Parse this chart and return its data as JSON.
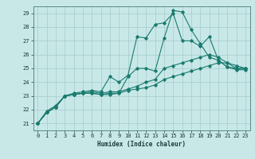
{
  "xlabel": "Humidex (Indice chaleur)",
  "ylabel": "",
  "xlim": [
    -0.5,
    23.5
  ],
  "ylim": [
    20.5,
    29.5
  ],
  "yticks": [
    21,
    22,
    23,
    24,
    25,
    26,
    27,
    28,
    29
  ],
  "xticks": [
    0,
    1,
    2,
    3,
    4,
    5,
    6,
    7,
    8,
    9,
    10,
    11,
    12,
    13,
    14,
    15,
    16,
    17,
    18,
    19,
    20,
    21,
    22,
    23
  ],
  "bg_color": "#c8e8e8",
  "grid_color": "#aad0d0",
  "line_color": "#1a7a6e",
  "lines": [
    [
      21.0,
      21.8,
      22.2,
      23.0,
      23.1,
      23.2,
      23.2,
      23.1,
      23.2,
      23.2,
      24.4,
      25.0,
      25.0,
      24.8,
      27.2,
      29.2,
      29.1,
      27.8,
      26.8,
      25.8,
      25.6,
      25.1,
      25.0,
      25.0
    ],
    [
      21.0,
      21.8,
      22.2,
      23.0,
      23.1,
      23.2,
      23.3,
      23.2,
      23.3,
      23.3,
      23.5,
      23.7,
      24.0,
      24.2,
      25.0,
      25.2,
      25.4,
      25.6,
      25.8,
      26.0,
      25.8,
      25.4,
      25.2,
      25.0
    ],
    [
      21.0,
      21.8,
      22.2,
      23.0,
      23.1,
      23.2,
      23.2,
      23.1,
      23.1,
      23.2,
      23.4,
      23.5,
      23.6,
      23.8,
      24.2,
      24.4,
      24.6,
      24.8,
      25.0,
      25.2,
      25.4,
      25.4,
      25.0,
      25.0
    ],
    [
      21.0,
      21.9,
      22.3,
      23.0,
      23.2,
      23.3,
      23.4,
      23.3,
      24.4,
      24.0,
      24.5,
      27.3,
      27.2,
      28.2,
      28.3,
      29.0,
      27.0,
      27.0,
      26.6,
      27.3,
      25.6,
      25.1,
      24.9,
      24.9
    ]
  ]
}
